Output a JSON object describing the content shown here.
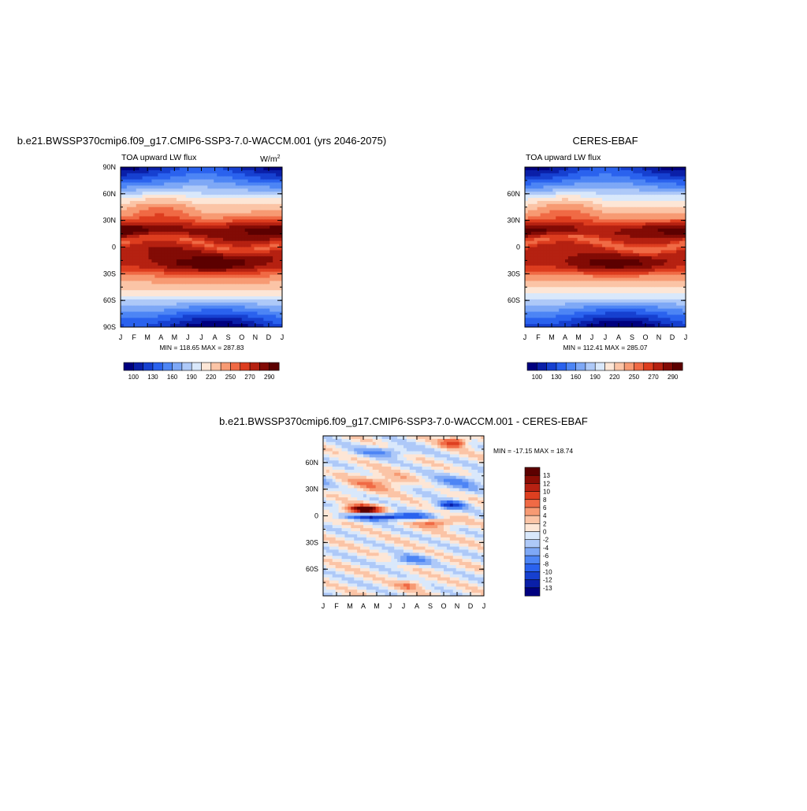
{
  "panels": {
    "model": {
      "title": "b.e21.BWSSP370cmip6.f09_g17.CMIP6-SSP3-7.0-WACCM.001 (yrs 2046-2075)",
      "subtitle": "TOA upward LW flux",
      "units_base": "W/m",
      "units_sup": "2",
      "stats": "MIN = 118.65 MAX = 287.83"
    },
    "obs": {
      "title": "CERES-EBAF",
      "subtitle": "TOA upward LW flux",
      "stats": "MIN = 112.41 MAX = 285.07"
    },
    "diff": {
      "title": "b.e21.BWSSP370cmip6.f09_g17.CMIP6-SSP3-7.0-WACCM.001 - CERES-EBAF",
      "stats": "MIN = -17.15 MAX =  18.74"
    }
  },
  "chart_data": [
    {
      "type": "heatmap",
      "name": "model",
      "x_ticks": [
        "J",
        "F",
        "M",
        "A",
        "M",
        "J",
        "J",
        "A",
        "S",
        "O",
        "N",
        "D",
        "J"
      ],
      "y_ticks": [
        "90N",
        "60N",
        "30N",
        "0",
        "30S",
        "60S",
        "90S"
      ],
      "ylim": [
        -90,
        90
      ],
      "colorbar_levels": [
        "100",
        "130",
        "160",
        "190",
        "220",
        "250",
        "270",
        "290"
      ],
      "min": 118.65,
      "max": 287.83
    },
    {
      "type": "heatmap",
      "name": "obs",
      "x_ticks": [
        "J",
        "F",
        "M",
        "A",
        "M",
        "J",
        "J",
        "A",
        "S",
        "O",
        "N",
        "D",
        "J"
      ],
      "y_ticks": [
        "60N",
        "30N",
        "0",
        "30S",
        "60S"
      ],
      "ylim": [
        -90,
        90
      ],
      "colorbar_levels": [
        "100",
        "130",
        "160",
        "190",
        "220",
        "250",
        "270",
        "290"
      ],
      "min": 112.41,
      "max": 285.07
    },
    {
      "type": "heatmap",
      "name": "diff",
      "x_ticks": [
        "J",
        "F",
        "M",
        "A",
        "M",
        "J",
        "J",
        "A",
        "S",
        "O",
        "N",
        "D",
        "J"
      ],
      "y_ticks": [
        "60N",
        "30N",
        "0",
        "30S",
        "60S"
      ],
      "ylim": [
        -90,
        90
      ],
      "colorbar_levels": [
        "13",
        "12",
        "10",
        "8",
        "6",
        "4",
        "2",
        "0",
        "-2",
        "-4",
        "-6",
        "-8",
        "-10",
        "-12",
        "-13"
      ],
      "min": -17.15,
      "max": 18.74
    }
  ],
  "colors": {
    "abs_scale": [
      "#00007f",
      "#0a1fa8",
      "#1640d0",
      "#2a62ee",
      "#4d85f5",
      "#7ea8f6",
      "#aec9f8",
      "#d9e8fb",
      "#fde6d6",
      "#fbc4a6",
      "#f79a73",
      "#f06a45",
      "#dd3d1f",
      "#b52111",
      "#820b05",
      "#5c0000"
    ],
    "diff_scale": [
      "#5c0000",
      "#8b0d05",
      "#b72112",
      "#de3f20",
      "#f06a45",
      "#f79a73",
      "#fbc4a6",
      "#fde6d6",
      "#d9e8fb",
      "#aec9f8",
      "#7ea8f6",
      "#4d85f5",
      "#2a62ee",
      "#1640d0",
      "#0a1fa8",
      "#00007f"
    ]
  }
}
